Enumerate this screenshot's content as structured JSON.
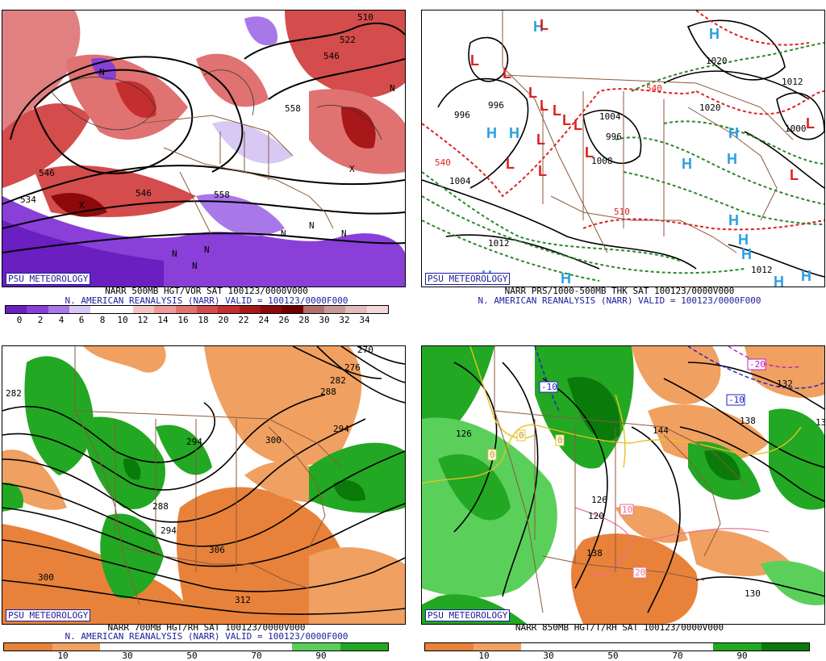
{
  "panels": [
    {
      "badge": "PSU METEOROLOGY",
      "caption1": "NARR 500MB HGT/VOR SAT 100123/0000V000",
      "caption2": "N. AMERICAN REANALYSIS (NARR) VALID = 100123/0000F000",
      "colorbar_labels": [
        "0",
        "2",
        "4",
        "6",
        "8",
        "10",
        "12",
        "14",
        "16",
        "18",
        "20",
        "22",
        "24",
        "26",
        "28",
        "30",
        "32",
        "34"
      ],
      "contour_labels": [
        "510",
        "522",
        "546",
        "558",
        "534",
        "546",
        "558",
        "546"
      ],
      "vort_marks": [
        "N",
        "N",
        "N",
        "N",
        "N",
        "N",
        "N",
        "N",
        "X",
        "X"
      ]
    },
    {
      "badge": "PSU METEOROLOGY",
      "caption1": "NARR PRS/1000-500MB THK SAT 100123/0000V000",
      "caption2": "N. AMERICAN REANALYSIS (NARR) VALID = 100123/0000F000",
      "contour_labels": [
        "996",
        "996",
        "1004",
        "1012",
        "1020",
        "1020",
        "1012",
        "1004",
        "996",
        "1000",
        "1012",
        "1008"
      ],
      "thickness_labels": [
        "540",
        "540",
        "510"
      ],
      "highs": [
        "H",
        "H",
        "H",
        "H",
        "H",
        "H",
        "H",
        "H",
        "H",
        "H",
        "H",
        "H",
        "H",
        "H"
      ],
      "lows": [
        "L",
        "L",
        "L",
        "L",
        "L",
        "L",
        "L",
        "L",
        "L",
        "L",
        "L",
        "L",
        "L"
      ]
    },
    {
      "badge": "PSU METEOROLOGY",
      "caption1": "NARR 700MB HGT/RH SAT 100123/0000V000",
      "caption2": "N. AMERICAN REANALYSIS (NARR) VALID = 100123/0000F000",
      "colorbar_labels": [
        "10",
        "30",
        "50",
        "70",
        "90"
      ],
      "contour_labels": [
        "282",
        "270",
        "276",
        "282",
        "288",
        "294",
        "300",
        "294",
        "288",
        "294",
        "306",
        "312",
        "300"
      ]
    },
    {
      "badge": "PSU METEOROLOGY",
      "caption1": "NARR 850MB HGT/T/RH SAT 100123/0000V000",
      "caption2": "",
      "colorbar_labels": [
        "10",
        "30",
        "50",
        "70",
        "90"
      ],
      "contour_labels": [
        "126",
        "144",
        "138",
        "132",
        "126",
        "138",
        "130",
        "120",
        "13"
      ],
      "temp_labels": [
        "-10",
        "-20",
        "-10",
        "0",
        "0",
        "0",
        "10",
        "20"
      ]
    }
  ],
  "colors": {
    "vor_scale": [
      "#6a1fc0",
      "#8a3fd8",
      "#a878e8",
      "#d8c8f4",
      "#ffffff",
      "#ffffff",
      "#f4c4c4",
      "#ee9a9a",
      "#e07272",
      "#d44c4c",
      "#c42e2e",
      "#a81818",
      "#8c0a0a",
      "#700000",
      "#b07070",
      "#c89898",
      "#e0bcbc",
      "#f4d8d8"
    ],
    "rh_scale": [
      "#e8823a",
      "#f0a060",
      "#ffffff",
      "#ffffff",
      "#5ad05a",
      "#22a822",
      "#0a7a0a"
    ]
  }
}
